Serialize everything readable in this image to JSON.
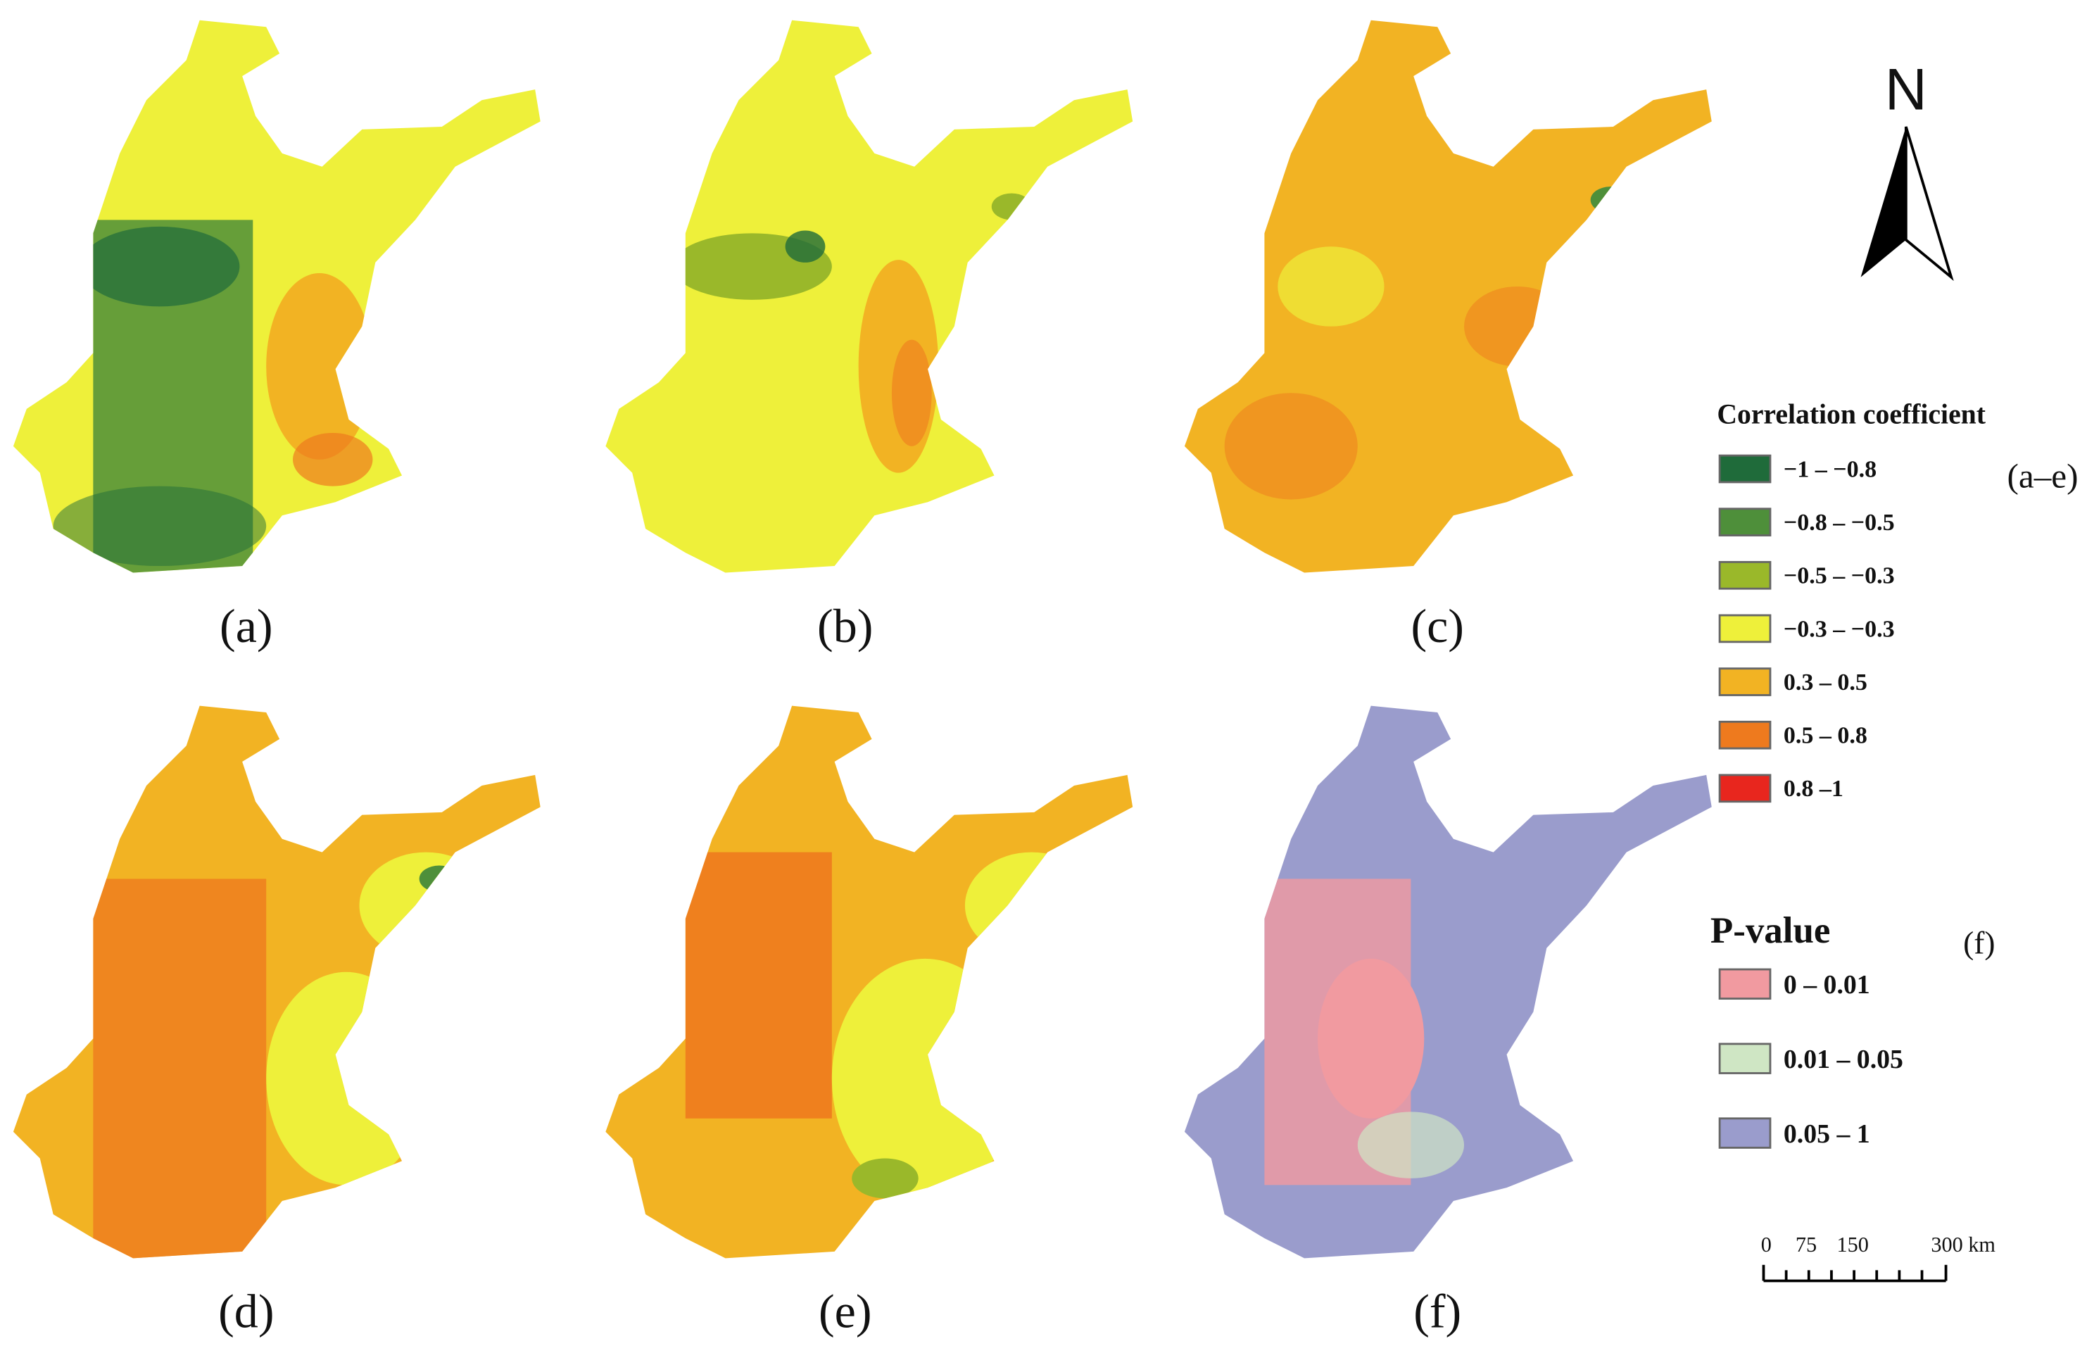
{
  "panels": [
    {
      "label": "(a)"
    },
    {
      "label": "(b)"
    },
    {
      "label": "(c)"
    },
    {
      "label": "(d)"
    },
    {
      "label": "(e)"
    },
    {
      "label": "(f)"
    }
  ],
  "north": "N",
  "legend": {
    "title": "Correlation coefficient",
    "scope": "(a–e)",
    "items": [
      {
        "label": "−1 – −0.8",
        "color": "#1f6b3a"
      },
      {
        "label": "−0.8 – −0.5",
        "color": "#4e8f3a"
      },
      {
        "label": "−0.5 – −0.3",
        "color": "#9ab82a"
      },
      {
        "label": "−0.3 – −0.3",
        "color": "#eef03a"
      },
      {
        "label": "0.3 – 0.5",
        "color": "#f2b323"
      },
      {
        "label": "0.5 – 0.8",
        "color": "#ee7a1e"
      },
      {
        "label": "0.8 –1",
        "color": "#e8261e"
      }
    ]
  },
  "p_legend": {
    "title": "P-value",
    "scope": "(f)",
    "items": [
      {
        "label": "0 – 0.01",
        "color": "#f19aa0"
      },
      {
        "label": "0.01 – 0.05",
        "color": "#cfe6c4"
      },
      {
        "label": "0.05 – 1",
        "color": "#9a9ccc"
      }
    ]
  },
  "scale_bar": {
    "labels": [
      "0",
      "75",
      "150",
      "300 km"
    ]
  }
}
